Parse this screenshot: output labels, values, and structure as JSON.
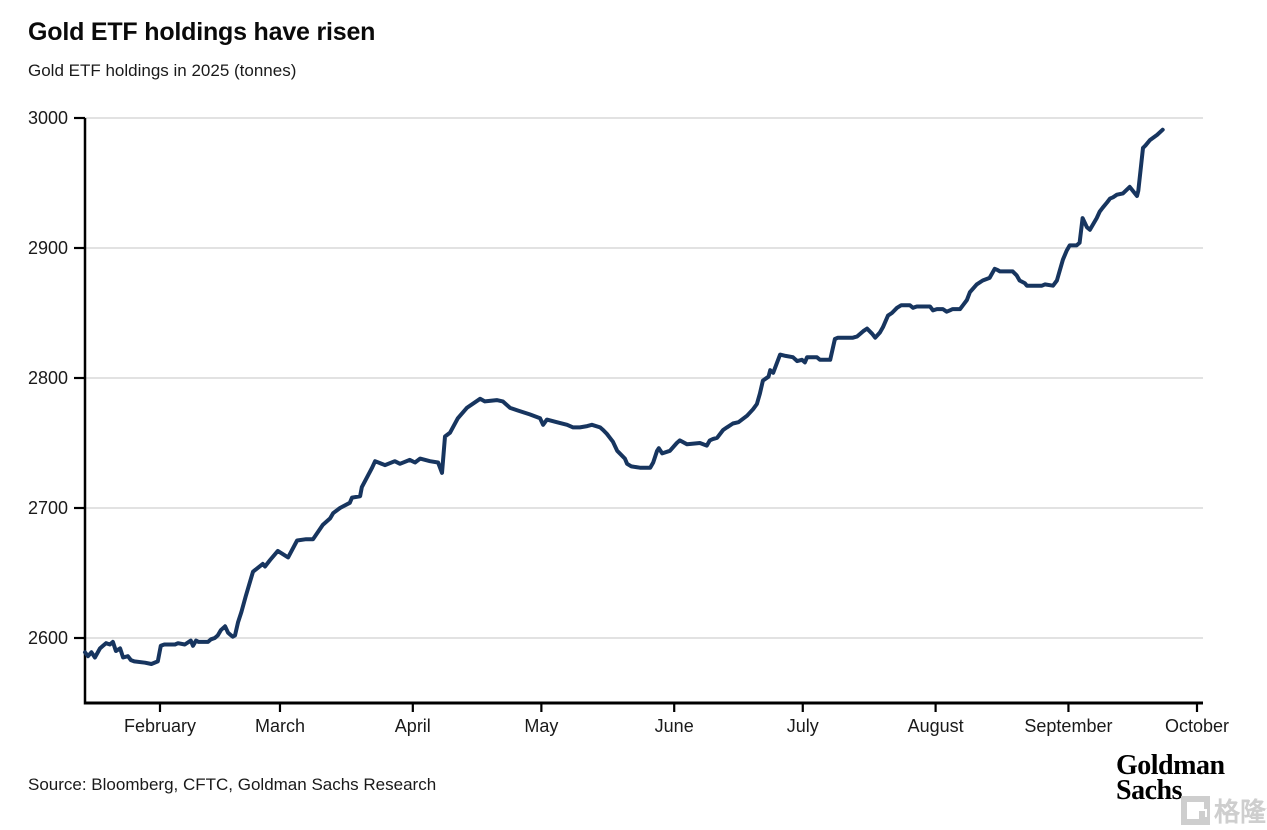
{
  "header": {
    "title": "Gold ETF holdings have risen",
    "subtitle": "Gold ETF holdings in 2025 (tonnes)"
  },
  "footer": {
    "source": "Source: Bloomberg, CFTC, Goldman Sachs Research",
    "logo_line1": "Goldman",
    "logo_line2": "Sachs"
  },
  "watermark": {
    "icon": "gelonghui-logo-icon",
    "text": "格隆汇"
  },
  "colors": {
    "line": "#17355f",
    "grid": "#d9d9d9",
    "axis": "#000000",
    "tick_text": "#1a1a1a",
    "watermark": "#c9c9c9"
  },
  "chart_data": {
    "type": "line",
    "title": "Gold ETF holdings have risen",
    "subtitle": "Gold ETF holdings in 2025 (tonnes)",
    "unit": "tonnes",
    "xlabel": "",
    "ylabel": "",
    "grid": "horizontal",
    "legend": "none",
    "ylim": [
      2550,
      3000
    ],
    "y_ticks": [
      2600,
      2700,
      2800,
      2900,
      3000
    ],
    "x_domain_days": [
      14.5,
      274.7
    ],
    "x_ticks": [
      {
        "label": "February",
        "day": 32
      },
      {
        "label": "March",
        "day": 60
      },
      {
        "label": "April",
        "day": 91
      },
      {
        "label": "May",
        "day": 121
      },
      {
        "label": "June",
        "day": 152
      },
      {
        "label": "July",
        "day": 182
      },
      {
        "label": "August",
        "day": 213
      },
      {
        "label": "September",
        "day": 244
      },
      {
        "label": "October",
        "day": 274
      }
    ],
    "series": [
      {
        "name": "Gold ETF holdings 2025",
        "points": [
          [
            14.5,
            2589
          ],
          [
            15.2,
            2586
          ],
          [
            16,
            2589
          ],
          [
            16.8,
            2585
          ],
          [
            18,
            2592
          ],
          [
            18.7,
            2594
          ],
          [
            19.4,
            2596
          ],
          [
            20.3,
            2595
          ],
          [
            21,
            2597
          ],
          [
            21.7,
            2590
          ],
          [
            22.7,
            2592
          ],
          [
            23.4,
            2585
          ],
          [
            24.5,
            2586
          ],
          [
            25.2,
            2583
          ],
          [
            26,
            2582
          ],
          [
            28.5,
            2581
          ],
          [
            30,
            2580
          ],
          [
            31.5,
            2582
          ],
          [
            32.2,
            2594
          ],
          [
            33,
            2595
          ],
          [
            35.5,
            2595
          ],
          [
            36.2,
            2596
          ],
          [
            37.8,
            2595
          ],
          [
            39.2,
            2598
          ],
          [
            39.7,
            2594
          ],
          [
            40.4,
            2598
          ],
          [
            41,
            2597
          ],
          [
            43.2,
            2597
          ],
          [
            43.9,
            2599
          ],
          [
            44.8,
            2600
          ],
          [
            45.5,
            2602
          ],
          [
            46.2,
            2606
          ],
          [
            47.2,
            2609
          ],
          [
            47.9,
            2604
          ],
          [
            48.6,
            2602
          ],
          [
            49,
            2601
          ],
          [
            49.5,
            2602
          ],
          [
            50.2,
            2612
          ],
          [
            51,
            2620
          ],
          [
            52,
            2632
          ],
          [
            53.7,
            2651
          ],
          [
            56,
            2657
          ],
          [
            56.5,
            2655
          ],
          [
            57.7,
            2660
          ],
          [
            59.5,
            2667
          ],
          [
            61.9,
            2662
          ],
          [
            64,
            2675
          ],
          [
            66.1,
            2676
          ],
          [
            67.7,
            2676
          ],
          [
            70,
            2687
          ],
          [
            71.7,
            2692
          ],
          [
            72.4,
            2696
          ],
          [
            74,
            2700
          ],
          [
            76.3,
            2704
          ],
          [
            76.8,
            2708
          ],
          [
            78.7,
            2709
          ],
          [
            79.1,
            2716
          ],
          [
            81.5,
            2731
          ],
          [
            82.2,
            2736
          ],
          [
            84.5,
            2733
          ],
          [
            86.8,
            2736
          ],
          [
            88,
            2734
          ],
          [
            90.3,
            2737
          ],
          [
            91.5,
            2735
          ],
          [
            92.7,
            2738
          ],
          [
            95,
            2736
          ],
          [
            96.9,
            2735
          ],
          [
            97.8,
            2727
          ],
          [
            98.5,
            2755
          ],
          [
            99.7,
            2758
          ],
          [
            101.5,
            2769
          ],
          [
            103.6,
            2777
          ],
          [
            106.7,
            2784
          ],
          [
            107.8,
            2782
          ],
          [
            110.6,
            2783
          ],
          [
            112,
            2782
          ],
          [
            113.7,
            2777
          ],
          [
            115.5,
            2775
          ],
          [
            118.3,
            2772
          ],
          [
            120.7,
            2769
          ],
          [
            121.4,
            2764
          ],
          [
            122.3,
            2768
          ],
          [
            124.6,
            2766
          ],
          [
            127,
            2764
          ],
          [
            128.4,
            2762
          ],
          [
            130,
            2762
          ],
          [
            131.7,
            2763
          ],
          [
            132.8,
            2764
          ],
          [
            134.7,
            2762
          ],
          [
            135.4,
            2760
          ],
          [
            136.3,
            2757
          ],
          [
            137,
            2754
          ],
          [
            137.7,
            2751
          ],
          [
            138.7,
            2744
          ],
          [
            139.3,
            2742
          ],
          [
            140.5,
            2738
          ],
          [
            141,
            2734
          ],
          [
            142,
            2732
          ],
          [
            144,
            2731
          ],
          [
            146.4,
            2731
          ],
          [
            147.1,
            2735
          ],
          [
            148,
            2744
          ],
          [
            148.4,
            2746
          ],
          [
            149.2,
            2742
          ],
          [
            151,
            2744
          ],
          [
            152.6,
            2750
          ],
          [
            153.3,
            2752
          ],
          [
            155,
            2749
          ],
          [
            158,
            2750
          ],
          [
            159.6,
            2748
          ],
          [
            160.3,
            2752
          ],
          [
            161,
            2753
          ],
          [
            162,
            2754
          ],
          [
            163.4,
            2760
          ],
          [
            164.3,
            2762
          ],
          [
            165.7,
            2765
          ],
          [
            167,
            2766
          ],
          [
            169,
            2771
          ],
          [
            170.4,
            2776
          ],
          [
            171.3,
            2780
          ],
          [
            172,
            2788
          ],
          [
            172.7,
            2798
          ],
          [
            174,
            2801
          ],
          [
            174.4,
            2806
          ],
          [
            175.1,
            2804
          ],
          [
            176.7,
            2818
          ],
          [
            178,
            2817
          ],
          [
            179.7,
            2816
          ],
          [
            180.7,
            2813
          ],
          [
            181.8,
            2814
          ],
          [
            182.5,
            2812
          ],
          [
            183,
            2816
          ],
          [
            185.3,
            2816
          ],
          [
            186,
            2814
          ],
          [
            188.4,
            2814
          ],
          [
            189.5,
            2830
          ],
          [
            190.2,
            2831
          ],
          [
            193.7,
            2831
          ],
          [
            194.7,
            2832
          ],
          [
            196.1,
            2836
          ],
          [
            197,
            2838
          ],
          [
            198.2,
            2834
          ],
          [
            198.9,
            2831
          ],
          [
            200,
            2835
          ],
          [
            200.7,
            2839
          ],
          [
            201.9,
            2848
          ],
          [
            202.8,
            2850
          ],
          [
            204,
            2854
          ],
          [
            205,
            2856
          ],
          [
            207,
            2856
          ],
          [
            207.7,
            2854
          ],
          [
            208.6,
            2855
          ],
          [
            211.7,
            2855
          ],
          [
            212.4,
            2852
          ],
          [
            213.3,
            2853
          ],
          [
            214.7,
            2853
          ],
          [
            215.6,
            2851
          ],
          [
            216.3,
            2852
          ],
          [
            217,
            2853
          ],
          [
            218.7,
            2853
          ],
          [
            219.4,
            2856
          ],
          [
            220.3,
            2860
          ],
          [
            221,
            2866
          ],
          [
            222.6,
            2872
          ],
          [
            224,
            2875
          ],
          [
            225.6,
            2877
          ],
          [
            226.8,
            2884
          ],
          [
            227.5,
            2883
          ],
          [
            228,
            2882
          ],
          [
            231,
            2882
          ],
          [
            231.9,
            2879
          ],
          [
            232.6,
            2875
          ],
          [
            233.8,
            2873
          ],
          [
            234.3,
            2871
          ],
          [
            237.8,
            2871
          ],
          [
            238.5,
            2872
          ],
          [
            240.4,
            2871
          ],
          [
            241.3,
            2875
          ],
          [
            242,
            2883
          ],
          [
            242.7,
            2891
          ],
          [
            243.6,
            2898
          ],
          [
            244.3,
            2902
          ],
          [
            245.9,
            2902
          ],
          [
            246.6,
            2904
          ],
          [
            247.3,
            2923
          ],
          [
            248.3,
            2916
          ],
          [
            249,
            2914
          ],
          [
            249.7,
            2918
          ],
          [
            250.6,
            2923
          ],
          [
            251.3,
            2928
          ],
          [
            252,
            2931
          ],
          [
            253,
            2935
          ],
          [
            253.7,
            2938
          ],
          [
            254.4,
            2939
          ],
          [
            255.3,
            2941
          ],
          [
            256.7,
            2942
          ],
          [
            258.3,
            2947
          ],
          [
            259.5,
            2942
          ],
          [
            260,
            2940
          ],
          [
            260.3,
            2944
          ],
          [
            261.4,
            2977
          ],
          [
            262,
            2979
          ],
          [
            263,
            2983
          ],
          [
            264.7,
            2987
          ],
          [
            266,
            2991
          ]
        ]
      }
    ]
  }
}
